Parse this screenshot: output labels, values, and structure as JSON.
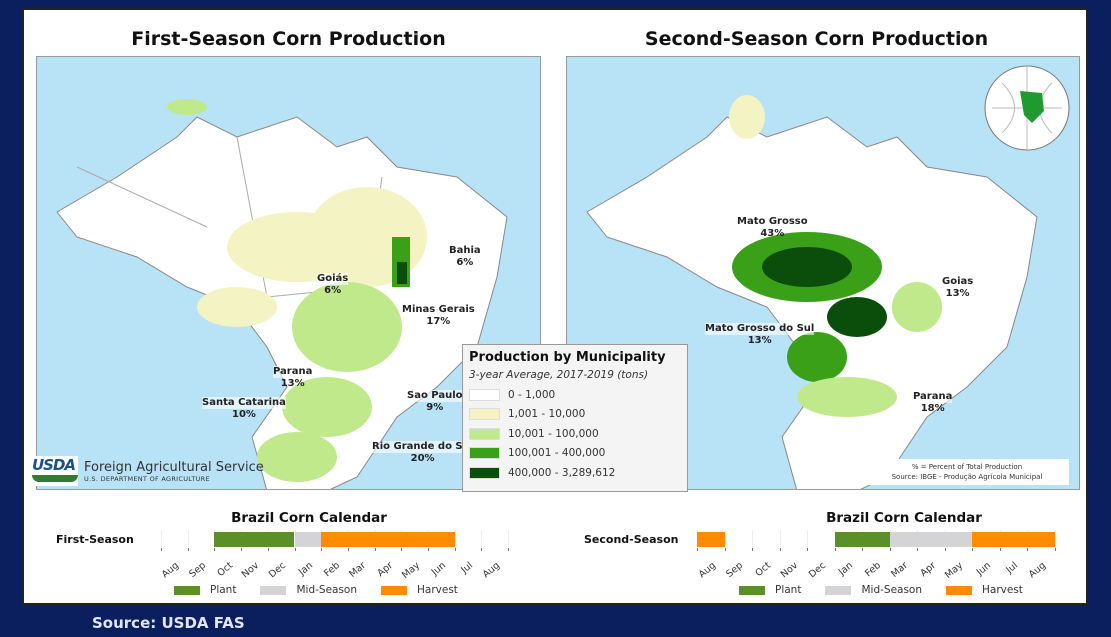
{
  "left_map": {
    "title": "First-Season Corn Production",
    "labels": [
      {
        "name": "Bahia",
        "pct": "6%"
      },
      {
        "name": "Goiás",
        "pct": "6%"
      },
      {
        "name": "Minas Gerais",
        "pct": "17%"
      },
      {
        "name": "Parana",
        "pct": "13%"
      },
      {
        "name": "Santa Catarina",
        "pct": "10%"
      },
      {
        "name": "Sao Paulo",
        "pct": "9%"
      },
      {
        "name": "Rio Grande do Sul",
        "pct": "20%"
      }
    ]
  },
  "right_map": {
    "title": "Second-Season Corn Production",
    "labels": [
      {
        "name": "Mato Grosso",
        "pct": "43%"
      },
      {
        "name": "Goias",
        "pct": "13%"
      },
      {
        "name": "Mato Grosso do Sul",
        "pct": "13%"
      },
      {
        "name": "Parana",
        "pct": "18%"
      }
    ],
    "note": "% = Percent of Total Production",
    "source": "Source: IBGE - Produção Agrícola Municipal"
  },
  "legend": {
    "title": "Production by Municipality",
    "subtitle": "3-year Average, 2017-2019 (tons)",
    "items": [
      {
        "label": "0 - 1,000",
        "color": "#ffffff"
      },
      {
        "label": "1,001 - 10,000",
        "color": "#f3f3c4"
      },
      {
        "label": "10,001 - 100,000",
        "color": "#bfe98a"
      },
      {
        "label": "100,001 - 400,000",
        "color": "#3aa017"
      },
      {
        "label": "400,000 - 3,289,612",
        "color": "#0b4d0b"
      }
    ]
  },
  "usda": {
    "logo": "USDA",
    "name": "Foreign Agricultural Service",
    "dept": "U.S. DEPARTMENT OF AGRICULTURE"
  },
  "calendars": [
    {
      "title": "Brazil Corn Calendar",
      "row": "First-Season",
      "months": [
        "Aug",
        "Sep",
        "Oct",
        "Nov",
        "Dec",
        "Jan",
        "Feb",
        "Mar",
        "Apr",
        "May",
        "Jun",
        "Jul",
        "Aug"
      ],
      "segments": [
        {
          "phase": "Plant",
          "start": 2,
          "end": 5
        },
        {
          "phase": "Mid-Season",
          "start": 5,
          "end": 6
        },
        {
          "phase": "Harvest",
          "start": 6,
          "end": 11
        }
      ]
    },
    {
      "title": "Brazil Corn Calendar",
      "row": "Second-Season",
      "months": [
        "Aug",
        "Sep",
        "Oct",
        "Nov",
        "Dec",
        "Jan",
        "Feb",
        "Mar",
        "Apr",
        "May",
        "Jun",
        "Jul",
        "Aug"
      ],
      "segments": [
        {
          "phase": "Harvest",
          "start": 0,
          "end": 1
        },
        {
          "phase": "Plant",
          "start": 5,
          "end": 7
        },
        {
          "phase": "Mid-Season",
          "start": 7,
          "end": 10
        },
        {
          "phase": "Harvest",
          "start": 10,
          "end": 13
        }
      ]
    }
  ],
  "phases": [
    {
      "label": "Plant",
      "color": "#5a8f29"
    },
    {
      "label": "Mid-Season",
      "color": "#d4d4d6"
    },
    {
      "label": "Harvest",
      "color": "#ff8c00"
    }
  ],
  "source": "Source:  USDA  FAS"
}
